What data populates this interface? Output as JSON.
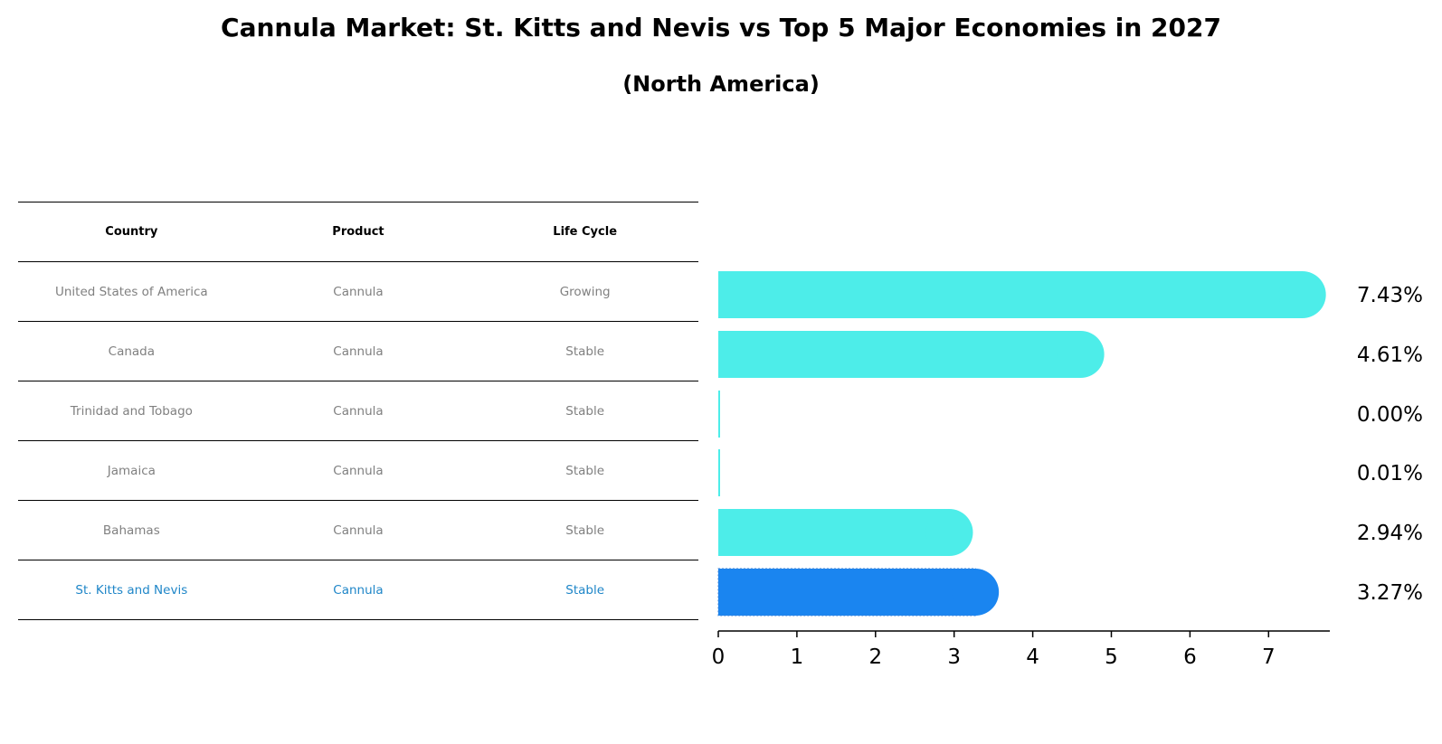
{
  "title": "Cannula Market: St. Kitts and Nevis vs Top 5 Major Economies in 2027",
  "subtitle": "(North America)",
  "table": {
    "headers": [
      "Country",
      "Product",
      "Life Cycle"
    ],
    "rows": [
      {
        "country": "United States of America",
        "product": "Cannula",
        "life_cycle": "Growing"
      },
      {
        "country": "Canada",
        "product": "Cannula",
        "life_cycle": "Stable"
      },
      {
        "country": "Trinidad and Tobago",
        "product": "Cannula",
        "life_cycle": "Stable"
      },
      {
        "country": "Jamaica",
        "product": "Cannula",
        "life_cycle": "Stable"
      },
      {
        "country": "Bahamas",
        "product": "Cannula",
        "life_cycle": "Stable"
      },
      {
        "country": "St. Kitts and Nevis",
        "product": "Cannula",
        "life_cycle": "Stable"
      }
    ]
  },
  "colors": {
    "bar": "#4dede9",
    "highlight_bar": "#1a85f0",
    "highlight_text": "#1f86c8",
    "muted_text": "#808080"
  },
  "chart_data": {
    "type": "bar",
    "orientation": "horizontal",
    "categories": [
      "United States of America",
      "Canada",
      "Trinidad and Tobago",
      "Jamaica",
      "Bahamas",
      "St. Kitts and Nevis"
    ],
    "values": [
      7.43,
      4.61,
      0.0,
      0.01,
      2.94,
      3.27
    ],
    "value_labels": [
      "7.43%",
      "4.61%",
      "0.00%",
      "0.01%",
      "2.94%",
      "3.27%"
    ],
    "highlight_index": 5,
    "xlim": [
      0,
      7.8
    ],
    "xticks": [
      0,
      1,
      2,
      3,
      4,
      5,
      6,
      7
    ],
    "xlabel": "",
    "ylabel": ""
  }
}
